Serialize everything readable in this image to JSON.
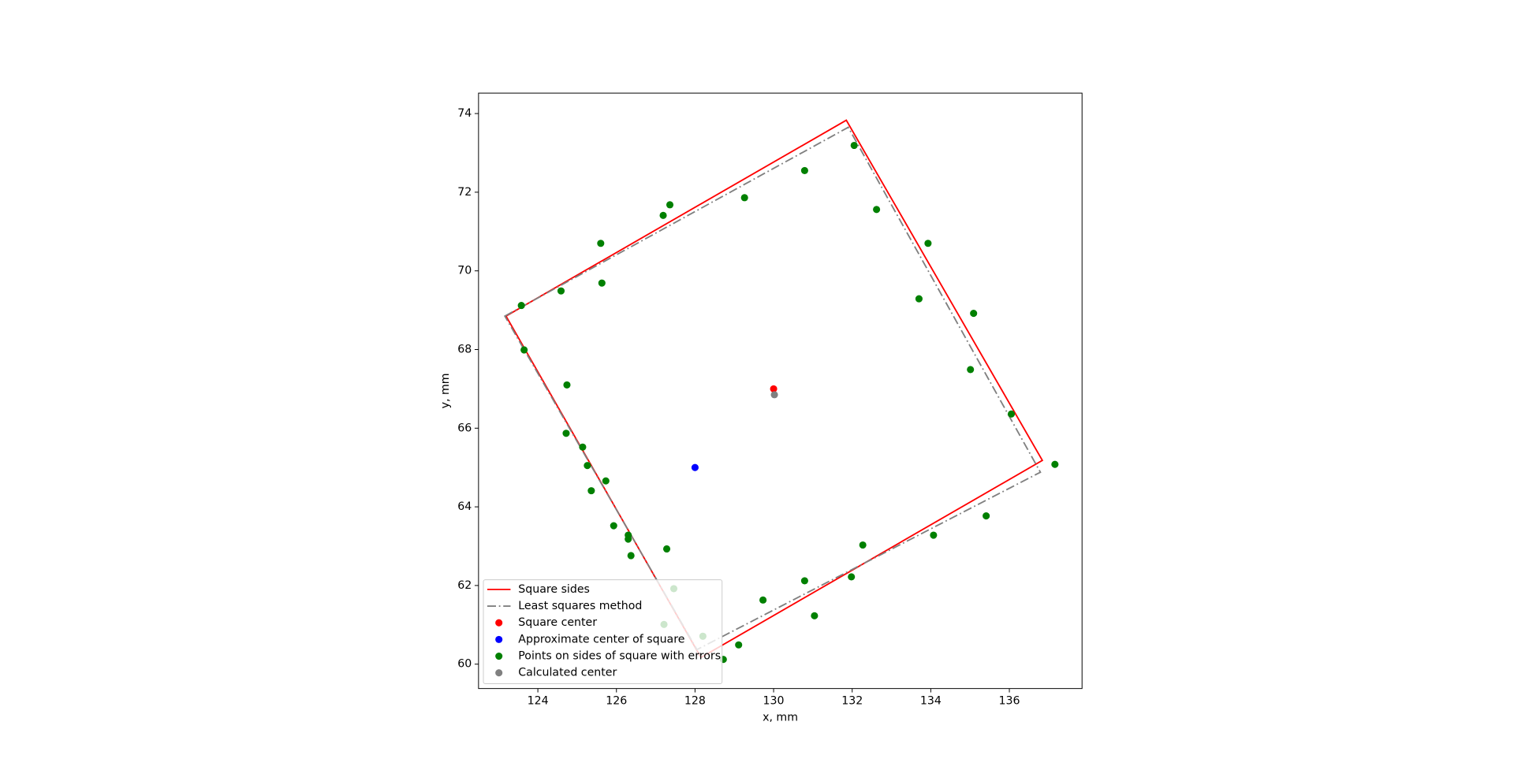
{
  "chart_data": {
    "type": "scatter",
    "xlabel": "x, mm",
    "ylabel": "y, mm",
    "xlim": [
      122.49,
      137.85
    ],
    "ylim": [
      59.38,
      74.52
    ],
    "xticks": [
      124,
      126,
      128,
      130,
      132,
      134,
      136
    ],
    "yticks": [
      60,
      62,
      64,
      66,
      68,
      70,
      72,
      74
    ],
    "legend": "lower left",
    "series": [
      {
        "name": "Square sides",
        "color": "#ff0000",
        "mode": "line",
        "linestyle": "solid",
        "closed": true,
        "x": [
          123.19,
          131.85,
          136.84,
          128.15
        ],
        "y": [
          68.85,
          73.83,
          65.18,
          60.17
        ]
      },
      {
        "name": "Least squares method",
        "color": "#808080",
        "mode": "line",
        "linestyle": "dashdot",
        "closed": true,
        "x": [
          123.16,
          131.9,
          136.79,
          128.05
        ],
        "y": [
          68.85,
          73.65,
          64.88,
          60.37
        ]
      },
      {
        "name": "Square center",
        "color": "#ff0000",
        "mode": "points",
        "x": [
          130.0
        ],
        "y": [
          67.0
        ]
      },
      {
        "name": "Approximate center of square",
        "color": "#0000ff",
        "mode": "points",
        "x": [
          128.0
        ],
        "y": [
          65.0
        ]
      },
      {
        "name": "Points on sides of square with errors",
        "color": "#008000",
        "mode": "points",
        "x": [
          123.58,
          124.59,
          125.6,
          125.63,
          127.19,
          127.36,
          129.26,
          130.79,
          132.05,
          132.62,
          133.93,
          133.7,
          135.09,
          135.01,
          136.05,
          137.16,
          135.41,
          134.07,
          132.27,
          131.98,
          130.79,
          131.04,
          129.73,
          129.11,
          128.72,
          128.2,
          127.46,
          127.21,
          127.28,
          126.37,
          126.3,
          126.3,
          125.93,
          125.73,
          125.36,
          125.26,
          125.14,
          124.72,
          124.74,
          123.65
        ],
        "y": [
          69.12,
          69.49,
          70.7,
          69.69,
          71.41,
          71.68,
          71.86,
          72.55,
          73.19,
          71.56,
          70.7,
          69.29,
          68.92,
          67.49,
          66.36,
          65.08,
          63.77,
          63.28,
          63.03,
          62.22,
          62.12,
          61.23,
          61.63,
          60.49,
          60.12,
          60.71,
          61.92,
          61.01,
          62.93,
          62.76,
          63.28,
          63.18,
          63.52,
          64.66,
          64.41,
          65.05,
          65.52,
          65.87,
          67.1,
          67.99
        ]
      },
      {
        "name": "Calculated center",
        "color": "#808080",
        "mode": "points",
        "x": [
          130.02
        ],
        "y": [
          66.85
        ]
      }
    ]
  }
}
